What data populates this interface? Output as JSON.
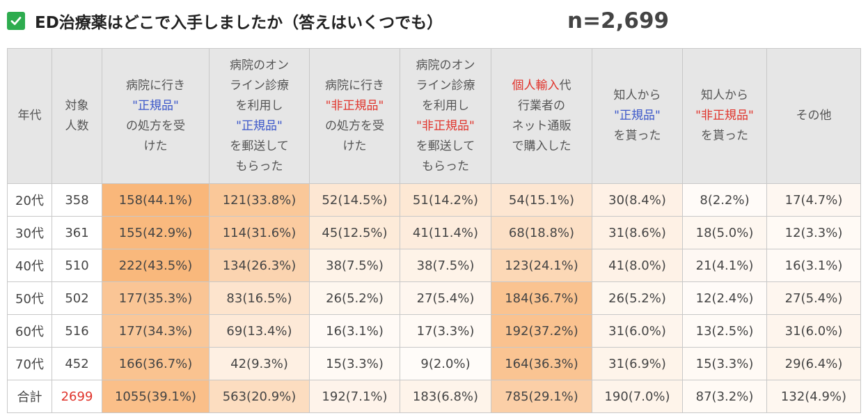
{
  "title": "ED治療薬はどこで入手しましたか（答えはいくつでも）",
  "n_label": "n=2,699",
  "headers": [
    {
      "lines": [
        {
          "parts": [
            {
              "t": "年代"
            }
          ]
        }
      ]
    },
    {
      "lines": [
        {
          "parts": [
            {
              "t": "対象"
            }
          ]
        },
        {
          "parts": [
            {
              "t": "人数"
            }
          ]
        }
      ]
    },
    {
      "lines": [
        {
          "parts": [
            {
              "t": "病院に行き"
            }
          ]
        },
        {
          "parts": [
            {
              "t": "\"正規品\"",
              "c": "blue"
            }
          ]
        },
        {
          "parts": [
            {
              "t": "の処方を受"
            }
          ]
        },
        {
          "parts": [
            {
              "t": "けた"
            }
          ]
        }
      ]
    },
    {
      "lines": [
        {
          "parts": [
            {
              "t": "病院のオン"
            }
          ]
        },
        {
          "parts": [
            {
              "t": "ライン診療"
            }
          ]
        },
        {
          "parts": [
            {
              "t": "を利用し"
            }
          ]
        },
        {
          "parts": [
            {
              "t": "\"正規品\"",
              "c": "blue"
            }
          ]
        },
        {
          "parts": [
            {
              "t": "を郵送して"
            }
          ]
        },
        {
          "parts": [
            {
              "t": "もらった"
            }
          ]
        }
      ]
    },
    {
      "lines": [
        {
          "parts": [
            {
              "t": "病院に行き"
            }
          ]
        },
        {
          "parts": [
            {
              "t": "\"非正規品\"",
              "c": "red"
            }
          ]
        },
        {
          "parts": [
            {
              "t": "の処方を受"
            }
          ]
        },
        {
          "parts": [
            {
              "t": "けた"
            }
          ]
        }
      ]
    },
    {
      "lines": [
        {
          "parts": [
            {
              "t": "病院のオン"
            }
          ]
        },
        {
          "parts": [
            {
              "t": "ライン診療"
            }
          ]
        },
        {
          "parts": [
            {
              "t": "を利用し"
            }
          ]
        },
        {
          "parts": [
            {
              "t": "\"非正規品\"",
              "c": "red"
            }
          ]
        },
        {
          "parts": [
            {
              "t": "を郵送して"
            }
          ]
        },
        {
          "parts": [
            {
              "t": "もらった"
            }
          ]
        }
      ]
    },
    {
      "lines": [
        {
          "parts": [
            {
              "t": "個人輸入",
              "c": "red"
            },
            {
              "t": "代"
            }
          ]
        },
        {
          "parts": [
            {
              "t": "行業者の"
            }
          ]
        },
        {
          "parts": [
            {
              "t": "ネット通販"
            }
          ]
        },
        {
          "parts": [
            {
              "t": "で購入した"
            }
          ]
        }
      ]
    },
    {
      "lines": [
        {
          "parts": [
            {
              "t": "知人から"
            }
          ]
        },
        {
          "parts": [
            {
              "t": "\"正規品\"",
              "c": "blue"
            }
          ]
        },
        {
          "parts": [
            {
              "t": "を貰った"
            }
          ]
        }
      ]
    },
    {
      "lines": [
        {
          "parts": [
            {
              "t": "知人から"
            }
          ]
        },
        {
          "parts": [
            {
              "t": "\"非正規品\"",
              "c": "red"
            }
          ]
        },
        {
          "parts": [
            {
              "t": "を貰った"
            }
          ]
        }
      ]
    },
    {
      "lines": [
        {
          "parts": [
            {
              "t": "その他"
            }
          ]
        }
      ]
    }
  ],
  "colors": {
    "header_bg": "#e6e6e6",
    "heat_max": "#f9b77a",
    "heat_min": "#ffffff",
    "blue_text": "#3a56c9",
    "red_text": "#e0332b",
    "check_green": "#2eac4f"
  },
  "chart_data": {
    "type": "table",
    "columns": [
      "年代",
      "対象人数",
      "病院に行き\"正規品\"の処方を受けた",
      "病院のオンライン診療を利用し\"正規品\"を郵送してもらった",
      "病院に行き\"非正規品\"の処方を受けた",
      "病院のオンライン診療を利用し\"非正規品\"を郵送してもらった",
      "個人輸入代行業者のネット通販で購入した",
      "知人から\"正規品\"を貰った",
      "知人から\"非正規品\"を貰った",
      "その他"
    ],
    "rows": [
      {
        "age": "20代",
        "n": "358",
        "cells": [
          {
            "text": "158(44.1%)",
            "pct": 44.1
          },
          {
            "text": "121(33.8%)",
            "pct": 33.8
          },
          {
            "text": "52(14.5%)",
            "pct": 14.5
          },
          {
            "text": "51(14.2%)",
            "pct": 14.2
          },
          {
            "text": "54(15.1%)",
            "pct": 15.1
          },
          {
            "text": "30(8.4%)",
            "pct": 8.4
          },
          {
            "text": "8(2.2%)",
            "pct": 2.2
          },
          {
            "text": "17(4.7%)",
            "pct": 4.7
          }
        ]
      },
      {
        "age": "30代",
        "n": "361",
        "cells": [
          {
            "text": "155(42.9%)",
            "pct": 42.9
          },
          {
            "text": "114(31.6%)",
            "pct": 31.6
          },
          {
            "text": "45(12.5%)",
            "pct": 12.5
          },
          {
            "text": "41(11.4%)",
            "pct": 11.4
          },
          {
            "text": "68(18.8%)",
            "pct": 18.8
          },
          {
            "text": "31(8.6%)",
            "pct": 8.6
          },
          {
            "text": "18(5.0%)",
            "pct": 5.0
          },
          {
            "text": "12(3.3%)",
            "pct": 3.3
          }
        ]
      },
      {
        "age": "40代",
        "n": "510",
        "cells": [
          {
            "text": "222(43.5%)",
            "pct": 43.5
          },
          {
            "text": "134(26.3%)",
            "pct": 26.3
          },
          {
            "text": "38(7.5%)",
            "pct": 7.5
          },
          {
            "text": "38(7.5%)",
            "pct": 7.5
          },
          {
            "text": "123(24.1%)",
            "pct": 24.1
          },
          {
            "text": "41(8.0%)",
            "pct": 8.0
          },
          {
            "text": "21(4.1%)",
            "pct": 4.1
          },
          {
            "text": "16(3.1%)",
            "pct": 3.1
          }
        ]
      },
      {
        "age": "50代",
        "n": "502",
        "cells": [
          {
            "text": "177(35.3%)",
            "pct": 35.3
          },
          {
            "text": "83(16.5%)",
            "pct": 16.5
          },
          {
            "text": "26(5.2%)",
            "pct": 5.2
          },
          {
            "text": "27(5.4%)",
            "pct": 5.4
          },
          {
            "text": "184(36.7%)",
            "pct": 36.7
          },
          {
            "text": "26(5.2%)",
            "pct": 5.2
          },
          {
            "text": "12(2.4%)",
            "pct": 2.4
          },
          {
            "text": "27(5.4%)",
            "pct": 5.4
          }
        ]
      },
      {
        "age": "60代",
        "n": "516",
        "cells": [
          {
            "text": "177(34.3%)",
            "pct": 34.3
          },
          {
            "text": "69(13.4%)",
            "pct": 13.4
          },
          {
            "text": "16(3.1%)",
            "pct": 3.1
          },
          {
            "text": "17(3.3%)",
            "pct": 3.3
          },
          {
            "text": "192(37.2%)",
            "pct": 37.2
          },
          {
            "text": "31(6.0%)",
            "pct": 6.0
          },
          {
            "text": "13(2.5%)",
            "pct": 2.5
          },
          {
            "text": "31(6.0%)",
            "pct": 6.0
          }
        ]
      },
      {
        "age": "70代",
        "n": "452",
        "cells": [
          {
            "text": "166(36.7%)",
            "pct": 36.7
          },
          {
            "text": "42(9.3%)",
            "pct": 9.3
          },
          {
            "text": "15(3.3%)",
            "pct": 3.3
          },
          {
            "text": "9(2.0%)",
            "pct": 2.0
          },
          {
            "text": "164(36.3%)",
            "pct": 36.3
          },
          {
            "text": "31(6.9%)",
            "pct": 6.9
          },
          {
            "text": "15(3.3%)",
            "pct": 3.3
          },
          {
            "text": "29(6.4%)",
            "pct": 6.4
          }
        ]
      },
      {
        "age": "合計",
        "n": "2699",
        "total": true,
        "cells": [
          {
            "text": "1055(39.1%)",
            "pct": 39.1
          },
          {
            "text": "563(20.9%)",
            "pct": 20.9
          },
          {
            "text": "192(7.1%)",
            "pct": 7.1
          },
          {
            "text": "183(6.8%)",
            "pct": 6.8
          },
          {
            "text": "785(29.1%)",
            "pct": 29.1
          },
          {
            "text": "190(7.0%)",
            "pct": 7.0
          },
          {
            "text": "87(3.2%)",
            "pct": 3.2
          },
          {
            "text": "132(4.9%)",
            "pct": 4.9
          }
        ]
      }
    ]
  }
}
